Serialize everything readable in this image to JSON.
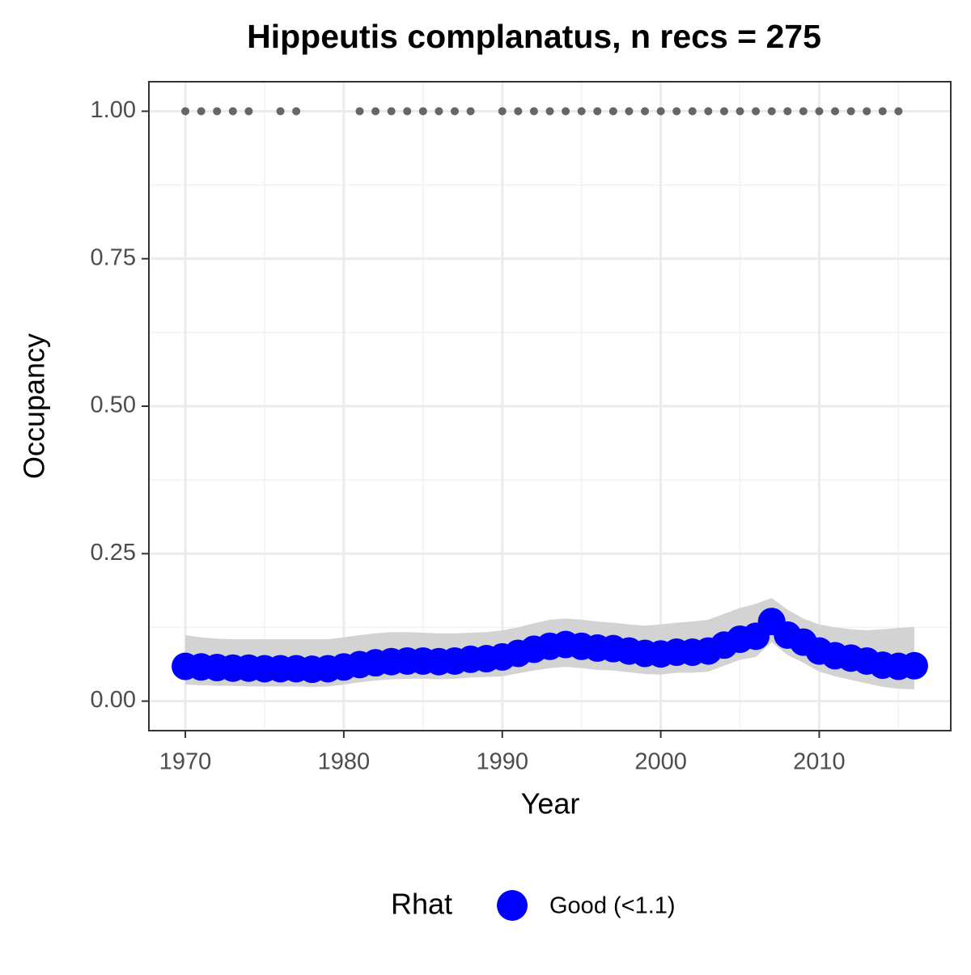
{
  "chart_data": {
    "type": "scatter",
    "title": "Hippeutis complanatus, n recs = 275",
    "x_label": "Year",
    "y_label": "Occupancy",
    "legend_title": "Rhat",
    "x": [
      1970,
      1971,
      1972,
      1973,
      1974,
      1975,
      1976,
      1977,
      1978,
      1979,
      1980,
      1981,
      1982,
      1983,
      1984,
      1985,
      1986,
      1987,
      1988,
      1989,
      1990,
      1991,
      1992,
      1993,
      1994,
      1995,
      1996,
      1997,
      1998,
      1999,
      2000,
      2001,
      2002,
      2003,
      2004,
      2005,
      2006,
      2007,
      2008,
      2009,
      2010,
      2011,
      2012,
      2013,
      2014,
      2015,
      2016
    ],
    "series": [
      {
        "name": "Good (<1.1)",
        "color": "#0000ff",
        "band_color": "#d3d3d3",
        "values": [
          0.059,
          0.058,
          0.057,
          0.056,
          0.056,
          0.055,
          0.055,
          0.055,
          0.054,
          0.055,
          0.058,
          0.062,
          0.065,
          0.067,
          0.068,
          0.068,
          0.067,
          0.068,
          0.071,
          0.072,
          0.075,
          0.081,
          0.088,
          0.093,
          0.096,
          0.093,
          0.09,
          0.089,
          0.085,
          0.081,
          0.08,
          0.083,
          0.083,
          0.085,
          0.095,
          0.105,
          0.11,
          0.135,
          0.112,
          0.1,
          0.085,
          0.077,
          0.073,
          0.068,
          0.061,
          0.059,
          0.06
        ],
        "upper": [
          0.112,
          0.108,
          0.106,
          0.105,
          0.105,
          0.105,
          0.105,
          0.105,
          0.105,
          0.105,
          0.108,
          0.112,
          0.115,
          0.117,
          0.117,
          0.116,
          0.115,
          0.115,
          0.116,
          0.117,
          0.12,
          0.125,
          0.132,
          0.138,
          0.14,
          0.138,
          0.135,
          0.133,
          0.13,
          0.128,
          0.13,
          0.133,
          0.135,
          0.138,
          0.148,
          0.158,
          0.165,
          0.175,
          0.155,
          0.14,
          0.13,
          0.125,
          0.122,
          0.12,
          0.122,
          0.124,
          0.126
        ],
        "lower": [
          0.028,
          0.027,
          0.026,
          0.026,
          0.025,
          0.025,
          0.025,
          0.025,
          0.024,
          0.025,
          0.028,
          0.032,
          0.035,
          0.037,
          0.038,
          0.038,
          0.037,
          0.038,
          0.04,
          0.041,
          0.042,
          0.047,
          0.052,
          0.056,
          0.058,
          0.056,
          0.053,
          0.052,
          0.049,
          0.046,
          0.045,
          0.048,
          0.048,
          0.05,
          0.06,
          0.07,
          0.075,
          0.1,
          0.078,
          0.065,
          0.05,
          0.042,
          0.036,
          0.03,
          0.024,
          0.021,
          0.02
        ]
      }
    ],
    "detections": {
      "color": "#666666",
      "x": [
        1970,
        1971,
        1972,
        1973,
        1974,
        1976,
        1977,
        1981,
        1982,
        1983,
        1984,
        1985,
        1986,
        1987,
        1988,
        1990,
        1991,
        1992,
        1993,
        1994,
        1995,
        1996,
        1997,
        1998,
        1999,
        2000,
        2001,
        2002,
        2003,
        2004,
        2005,
        2006,
        2007,
        2008,
        2009,
        2010,
        2011,
        2012,
        2013,
        2014,
        2015
      ],
      "values": [
        1,
        1,
        1,
        1,
        1,
        1,
        1,
        1,
        1,
        1,
        1,
        1,
        1,
        1,
        1,
        1,
        1,
        1,
        1,
        1,
        1,
        1,
        1,
        1,
        1,
        1,
        1,
        1,
        1,
        1,
        1,
        1,
        1,
        1,
        1,
        1,
        1,
        1,
        1,
        1,
        1
      ]
    },
    "xlim": [
      1967.7,
      2018.3
    ],
    "ylim": [
      -0.05,
      1.05
    ],
    "xticks": [
      1970,
      1980,
      1990,
      2000,
      2010
    ],
    "yticks": [
      {
        "value": 0,
        "label": "0.00"
      },
      {
        "value": 0.25,
        "label": "0.25"
      },
      {
        "value": 0.5,
        "label": "0.50"
      },
      {
        "value": 0.75,
        "label": "0.75"
      },
      {
        "value": 1,
        "label": "1.00"
      }
    ],
    "xminor": [
      1975,
      1985,
      1995,
      2005,
      2015
    ],
    "yminor": [
      0.125,
      0.375,
      0.625,
      0.875
    ],
    "grid": true,
    "legend_position": "bottom"
  }
}
